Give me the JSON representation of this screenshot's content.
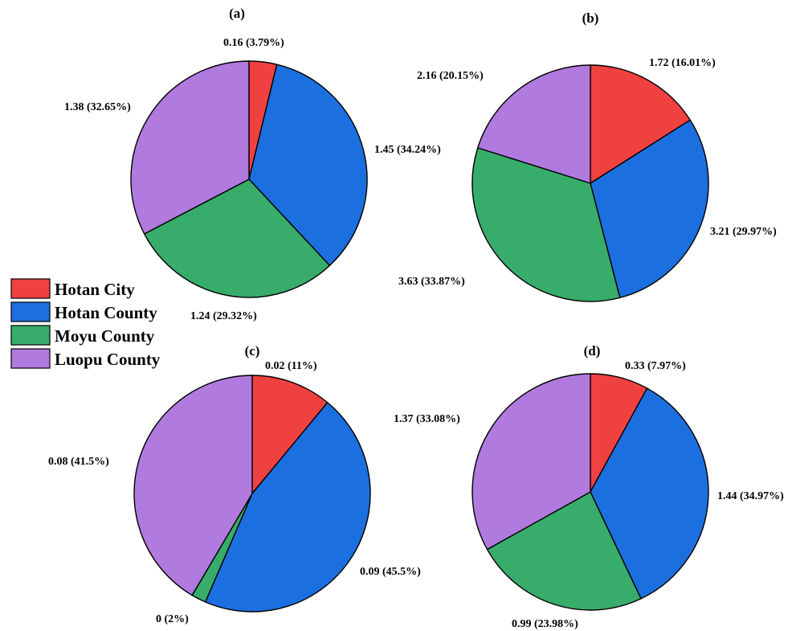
{
  "legend": [
    {
      "label": "Hotan City",
      "color": "#f04141"
    },
    {
      "label": "Hotan County",
      "color": "#1c6fde"
    },
    {
      "label": "Moyu County",
      "color": "#38ac6a"
    },
    {
      "label": "Luopu County",
      "color": "#b07ade"
    }
  ],
  "chart_data": [
    {
      "type": "pie",
      "title": "(a)",
      "categories": [
        "Hotan City",
        "Hotan County",
        "Moyu County",
        "Luopu County"
      ],
      "values": [
        0.16,
        1.45,
        1.24,
        1.38
      ],
      "percentages": [
        3.79,
        34.24,
        29.32,
        32.65
      ],
      "labels": [
        "0.16 (3.79%)",
        "1.45 (34.24%)",
        "1.24 (29.32%)",
        "1.38 (32.65%)"
      ]
    },
    {
      "type": "pie",
      "title": "(b)",
      "categories": [
        "Hotan City",
        "Hotan County",
        "Moyu County",
        "Luopu County"
      ],
      "values": [
        1.72,
        3.21,
        3.63,
        2.16
      ],
      "percentages": [
        16.01,
        29.97,
        33.87,
        20.15
      ],
      "labels": [
        "1.72 (16.01%)",
        "3.21 (29.97%)",
        "3.63 (33.87%)",
        "2.16 (20.15%)"
      ]
    },
    {
      "type": "pie",
      "title": "(c)",
      "categories": [
        "Hotan City",
        "Hotan County",
        "Moyu County",
        "Luopu County"
      ],
      "values": [
        0.02,
        0.09,
        0,
        0.08
      ],
      "percentages": [
        11,
        45.5,
        2,
        41.5
      ],
      "labels": [
        "0.02 (11%)",
        "0.09 (45.5%)",
        "0 (2%)",
        "0.08 (41.5%)"
      ]
    },
    {
      "type": "pie",
      "title": "(d)",
      "categories": [
        "Hotan City",
        "Hotan County",
        "Moyu County",
        "Luopu County"
      ],
      "values": [
        0.33,
        1.44,
        0.99,
        1.37
      ],
      "percentages": [
        7.97,
        34.97,
        23.98,
        33.08
      ],
      "labels": [
        "0.33 (7.97%)",
        "1.44 (34.97%)",
        "0.99 (23.98%)",
        "1.37 (33.08%)"
      ]
    }
  ]
}
